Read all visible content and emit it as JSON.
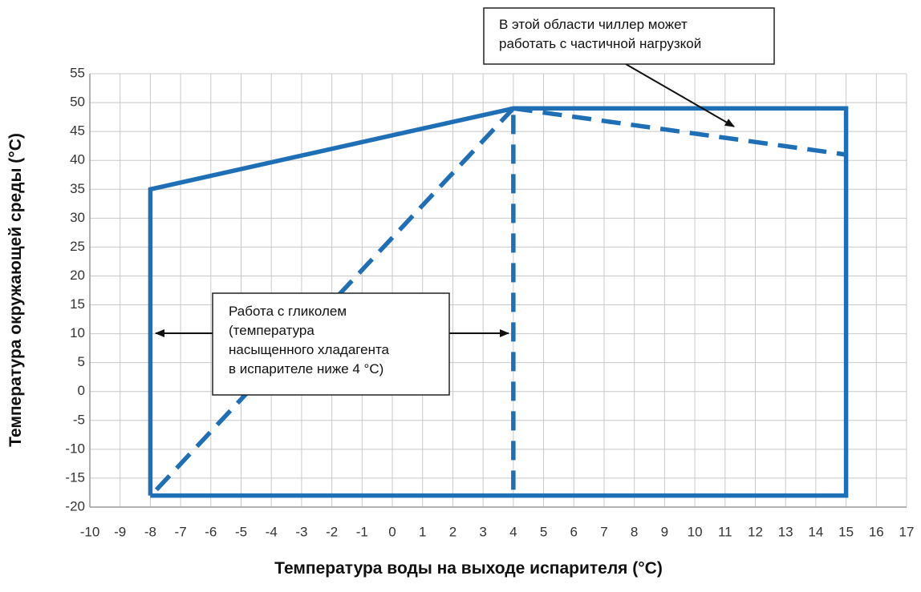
{
  "chart_data": {
    "type": "line",
    "xlabel": "Температура воды на выходе испарителя (°C)",
    "ylabel": "Температура окружающей среды (°C)",
    "xlim": [
      -10,
      17
    ],
    "ylim": [
      -20,
      55
    ],
    "xticks": [
      -10,
      -9,
      -8,
      -7,
      -6,
      -5,
      -4,
      -3,
      -2,
      -1,
      0,
      1,
      2,
      3,
      4,
      5,
      6,
      7,
      8,
      9,
      10,
      11,
      12,
      13,
      14,
      15,
      16,
      17
    ],
    "yticks": [
      -20,
      -15,
      -10,
      -5,
      0,
      5,
      10,
      15,
      20,
      25,
      30,
      35,
      40,
      45,
      50,
      55
    ],
    "grid": true,
    "series": [
      {
        "color": "#1f6fb6",
        "dash": false,
        "x": [
          -8,
          -8,
          4,
          15,
          15,
          -8
        ],
        "y": [
          -18,
          35,
          49,
          49,
          -18,
          -18
        ]
      },
      {
        "color": "#1f6fb6",
        "dash": true,
        "x": [
          -7.8,
          4
        ],
        "y": [
          -17,
          49
        ]
      },
      {
        "color": "#1f6fb6",
        "dash": true,
        "x": [
          4,
          4
        ],
        "y": [
          -17,
          49
        ]
      },
      {
        "color": "#1f6fb6",
        "dash": true,
        "x": [
          4,
          15
        ],
        "y": [
          49,
          41
        ]
      }
    ],
    "annotations": [
      {
        "lines": [
          "В этой области чиллер может",
          "работать с частичной нагрузкой"
        ]
      },
      {
        "lines": [
          "Работа с гликолем",
          "(температура",
          "насыщенного  хладагента",
          "в испарителе ниже 4 °C)"
        ]
      }
    ]
  }
}
